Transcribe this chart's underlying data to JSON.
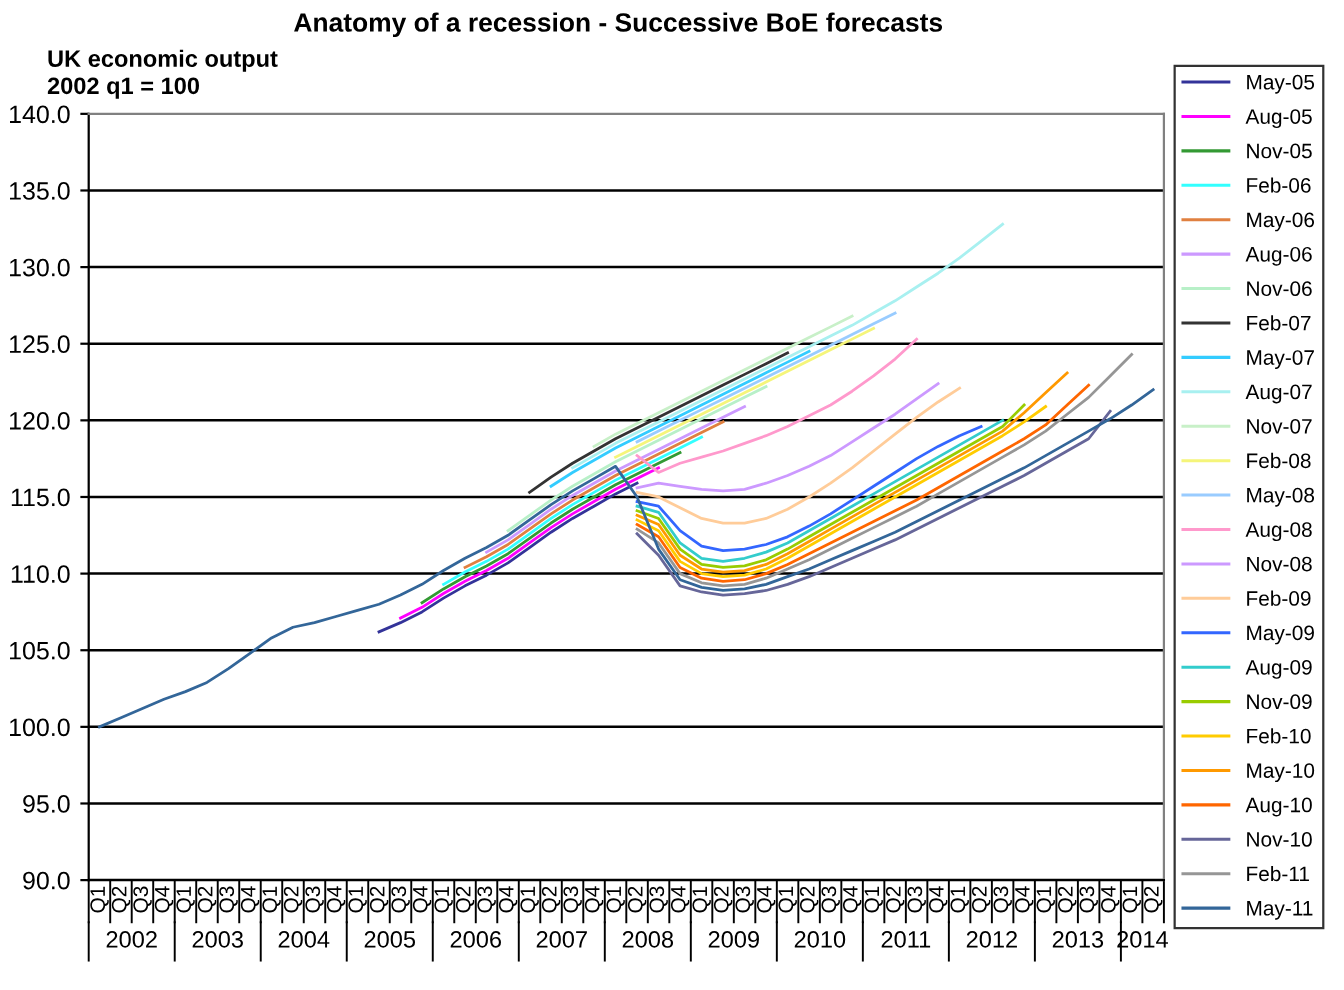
{
  "chart_data": {
    "type": "line",
    "title": "Anatomy of a recession - Successive BoE forecasts",
    "subtitle": "UK economic output\n2002 q1 = 100",
    "categories": [
      "Q1",
      "Q2",
      "Q3",
      "Q4",
      "Q1",
      "Q2",
      "Q3",
      "Q4",
      "Q1",
      "Q2",
      "Q3",
      "Q4",
      "Q1",
      "Q2",
      "Q3",
      "Q4",
      "Q1",
      "Q2",
      "Q3",
      "Q4",
      "Q1",
      "Q2",
      "Q3",
      "Q4",
      "Q1",
      "Q2",
      "Q3",
      "Q4",
      "Q1",
      "Q2",
      "Q3",
      "Q4",
      "Q1",
      "Q2",
      "Q3",
      "Q4",
      "Q1",
      "Q2",
      "Q3",
      "Q4",
      "Q1",
      "Q2",
      "Q3",
      "Q4",
      "Q1",
      "Q2",
      "Q3",
      "Q4",
      "Q1",
      "Q2"
    ],
    "annotations": [
      "2002",
      "2003",
      "2004",
      "2005",
      "2006",
      "2007",
      "2008",
      "2009",
      "2010",
      "2011",
      "2012",
      "2013",
      "2014"
    ],
    "ylim": [
      90,
      140
    ],
    "yticks": [
      {
        "value": 90,
        "label": "90.0"
      },
      {
        "value": 95,
        "label": "95.0"
      },
      {
        "value": 100,
        "label": "100.0"
      },
      {
        "value": 105,
        "label": "105.0"
      },
      {
        "value": 110,
        "label": "110.0"
      },
      {
        "value": 115,
        "label": "115.0"
      },
      {
        "value": 120,
        "label": "120.0"
      },
      {
        "value": 125,
        "label": "125.0"
      },
      {
        "value": 130,
        "label": "130.0"
      },
      {
        "value": 135,
        "label": "135.0"
      },
      {
        "value": 140,
        "label": "140.0"
      }
    ],
    "grid": "y",
    "legend": "right",
    "marker": "none",
    "line_style": "solid",
    "series": [
      {
        "name": "May-05",
        "color": "#333399",
        "values": [
          null,
          null,
          null,
          null,
          null,
          null,
          null,
          null,
          null,
          null,
          null,
          null,
          null,
          106.2,
          106.8,
          107.5,
          108.4,
          109.2,
          109.9,
          110.7,
          111.7,
          112.7,
          113.6,
          114.4,
          115.2,
          115.9,
          null,
          null,
          null,
          null,
          null,
          null,
          null,
          null,
          null,
          null,
          null,
          null,
          null,
          null,
          null,
          null,
          null,
          null,
          null,
          null,
          null,
          null,
          null,
          null
        ]
      },
      {
        "name": "Aug-05",
        "color": "#ff00ff",
        "values": [
          null,
          null,
          null,
          null,
          null,
          null,
          null,
          null,
          null,
          null,
          null,
          null,
          null,
          null,
          107.1,
          107.8,
          108.7,
          109.5,
          110.2,
          111.0,
          112.0,
          113.0,
          113.9,
          114.7,
          115.5,
          116.2,
          116.9,
          null,
          null,
          null,
          null,
          null,
          null,
          null,
          null,
          null,
          null,
          null,
          null,
          null,
          null,
          null,
          null,
          null,
          null,
          null,
          null,
          null,
          null,
          null
        ]
      },
      {
        "name": "Nov-05",
        "color": "#339933",
        "values": [
          null,
          null,
          null,
          null,
          null,
          null,
          null,
          null,
          null,
          null,
          null,
          null,
          null,
          null,
          null,
          108.1,
          109.0,
          109.8,
          110.5,
          111.3,
          112.3,
          113.3,
          114.2,
          115.0,
          115.8,
          116.5,
          117.2,
          117.9,
          null,
          null,
          null,
          null,
          null,
          null,
          null,
          null,
          null,
          null,
          null,
          null,
          null,
          null,
          null,
          null,
          null,
          null,
          null,
          null,
          null,
          null
        ]
      },
      {
        "name": "Feb-06",
        "color": "#33ffff",
        "values": [
          null,
          null,
          null,
          null,
          null,
          null,
          null,
          null,
          null,
          null,
          null,
          null,
          null,
          null,
          null,
          null,
          109.3,
          110.1,
          110.8,
          111.6,
          112.6,
          113.6,
          114.5,
          115.3,
          116.1,
          116.8,
          117.5,
          118.2,
          118.9,
          null,
          null,
          null,
          null,
          null,
          null,
          null,
          null,
          null,
          null,
          null,
          null,
          null,
          null,
          null,
          null,
          null,
          null,
          null,
          null,
          null
        ]
      },
      {
        "name": "May-06",
        "color": "#e08040",
        "values": [
          null,
          null,
          null,
          null,
          null,
          null,
          null,
          null,
          null,
          null,
          null,
          null,
          null,
          null,
          null,
          null,
          null,
          110.4,
          111.1,
          111.9,
          112.9,
          113.9,
          114.8,
          115.6,
          116.4,
          117.1,
          117.8,
          118.5,
          119.2,
          119.9,
          null,
          null,
          null,
          null,
          null,
          null,
          null,
          null,
          null,
          null,
          null,
          null,
          null,
          null,
          null,
          null,
          null,
          null,
          null,
          null
        ]
      },
      {
        "name": "Aug-06",
        "color": "#cc99ff",
        "values": [
          null,
          null,
          null,
          null,
          null,
          null,
          null,
          null,
          null,
          null,
          null,
          null,
          null,
          null,
          null,
          null,
          null,
          null,
          111.4,
          112.2,
          113.2,
          114.2,
          115.1,
          115.9,
          116.7,
          117.4,
          118.1,
          118.8,
          119.5,
          120.2,
          120.9,
          null,
          null,
          null,
          null,
          null,
          null,
          null,
          null,
          null,
          null,
          null,
          null,
          null,
          null,
          null,
          null,
          null,
          null,
          null
        ]
      },
      {
        "name": "Nov-06",
        "color": "#b8f0c8",
        "values": [
          null,
          null,
          null,
          null,
          null,
          null,
          null,
          null,
          null,
          null,
          null,
          null,
          null,
          null,
          null,
          null,
          null,
          null,
          null,
          112.8,
          113.8,
          114.8,
          115.7,
          116.5,
          117.3,
          118.0,
          118.7,
          119.4,
          120.1,
          120.8,
          121.5,
          122.2,
          null,
          null,
          null,
          null,
          null,
          null,
          null,
          null,
          null,
          null,
          null,
          null,
          null,
          null,
          null,
          null,
          null,
          null
        ]
      },
      {
        "name": "Feb-07",
        "color": "#333333",
        "values": [
          null,
          null,
          null,
          null,
          null,
          null,
          null,
          null,
          null,
          null,
          null,
          null,
          null,
          null,
          null,
          null,
          null,
          null,
          null,
          null,
          115.3,
          116.3,
          117.2,
          118.0,
          118.8,
          119.5,
          120.2,
          120.9,
          121.6,
          122.3,
          123.0,
          123.7,
          124.4,
          null,
          null,
          null,
          null,
          null,
          null,
          null,
          null,
          null,
          null,
          null,
          null,
          null,
          null,
          null,
          null,
          null
        ]
      },
      {
        "name": "May-07",
        "color": "#33ccff",
        "values": [
          null,
          null,
          null,
          null,
          null,
          null,
          null,
          null,
          null,
          null,
          null,
          null,
          null,
          null,
          null,
          null,
          null,
          null,
          null,
          null,
          null,
          115.7,
          116.6,
          117.4,
          118.2,
          118.9,
          119.6,
          120.3,
          121.0,
          121.7,
          122.4,
          123.1,
          123.8,
          124.5,
          null,
          null,
          null,
          null,
          null,
          null,
          null,
          null,
          null,
          null,
          null,
          null,
          null,
          null,
          null,
          null
        ]
      },
      {
        "name": "Aug-07",
        "color": "#a8f0f0",
        "values": [
          null,
          null,
          null,
          null,
          null,
          null,
          null,
          null,
          null,
          null,
          null,
          null,
          null,
          null,
          null,
          null,
          null,
          null,
          null,
          null,
          null,
          null,
          116.9,
          117.7,
          118.5,
          119.2,
          119.9,
          120.6,
          121.3,
          122.0,
          122.7,
          123.4,
          124.1,
          124.8,
          125.5,
          126.2,
          127.0,
          127.8,
          128.7,
          129.6,
          130.6,
          131.7,
          132.8,
          null,
          null,
          null,
          null,
          null,
          null,
          null
        ]
      },
      {
        "name": "Nov-07",
        "color": "#c8f0c8",
        "values": [
          null,
          null,
          null,
          null,
          null,
          null,
          null,
          null,
          null,
          null,
          null,
          null,
          null,
          null,
          null,
          null,
          null,
          null,
          null,
          null,
          null,
          null,
          null,
          118.3,
          119.1,
          119.8,
          120.5,
          121.2,
          121.9,
          122.6,
          123.3,
          124.0,
          124.7,
          125.4,
          126.1,
          126.8,
          null,
          null,
          null,
          null,
          null,
          null,
          null,
          null,
          null,
          null,
          null,
          null,
          null,
          null
        ]
      },
      {
        "name": "Feb-08",
        "color": "#f5f57a",
        "values": [
          null,
          null,
          null,
          null,
          null,
          null,
          null,
          null,
          null,
          null,
          null,
          null,
          null,
          null,
          null,
          null,
          null,
          null,
          null,
          null,
          null,
          null,
          null,
          null,
          117.6,
          118.3,
          119.0,
          119.7,
          120.4,
          121.1,
          121.8,
          122.5,
          123.2,
          123.9,
          124.6,
          125.3,
          126.0,
          null,
          null,
          null,
          null,
          null,
          null,
          null,
          null,
          null,
          null,
          null,
          null,
          null
        ]
      },
      {
        "name": "May-08",
        "color": "#99ccff",
        "values": [
          null,
          null,
          null,
          null,
          null,
          null,
          null,
          null,
          null,
          null,
          null,
          null,
          null,
          null,
          null,
          null,
          null,
          null,
          null,
          null,
          null,
          null,
          null,
          null,
          null,
          118.6,
          119.3,
          120.0,
          120.7,
          121.4,
          122.1,
          122.8,
          123.5,
          124.2,
          124.9,
          125.6,
          126.3,
          127.0,
          null,
          null,
          null,
          null,
          null,
          null,
          null,
          null,
          null,
          null,
          null,
          null
        ]
      },
      {
        "name": "Aug-08",
        "color": "#ff99cc",
        "values": [
          null,
          null,
          null,
          null,
          null,
          null,
          null,
          null,
          null,
          null,
          null,
          null,
          null,
          null,
          null,
          null,
          null,
          null,
          null,
          null,
          null,
          null,
          null,
          null,
          null,
          117.7,
          116.6,
          117.2,
          117.6,
          118.0,
          118.5,
          119.0,
          119.6,
          120.3,
          121.0,
          121.9,
          122.9,
          124.0,
          125.3,
          null,
          null,
          null,
          null,
          null,
          null,
          null,
          null,
          null,
          null,
          null
        ]
      },
      {
        "name": "Nov-08",
        "color": "#cc99ff",
        "values": [
          null,
          null,
          null,
          null,
          null,
          null,
          null,
          null,
          null,
          null,
          null,
          null,
          null,
          null,
          null,
          null,
          null,
          null,
          null,
          null,
          null,
          null,
          null,
          null,
          null,
          115.6,
          115.9,
          115.7,
          115.5,
          115.4,
          115.5,
          115.9,
          116.4,
          117.0,
          117.7,
          118.6,
          119.5,
          120.4,
          121.4,
          122.4,
          null,
          null,
          null,
          null,
          null,
          null,
          null,
          null,
          null,
          null
        ]
      },
      {
        "name": "Feb-09",
        "color": "#ffcc99",
        "values": [
          null,
          null,
          null,
          null,
          null,
          null,
          null,
          null,
          null,
          null,
          null,
          null,
          null,
          null,
          null,
          null,
          null,
          null,
          null,
          null,
          null,
          null,
          null,
          null,
          null,
          115.3,
          115.0,
          114.3,
          113.6,
          113.3,
          113.3,
          113.6,
          114.2,
          115.0,
          115.9,
          116.9,
          118.0,
          119.1,
          120.2,
          121.2,
          122.1,
          null,
          null,
          null,
          null,
          null,
          null,
          null,
          null,
          null
        ]
      },
      {
        "name": "May-09",
        "color": "#3366ff",
        "values": [
          null,
          null,
          null,
          null,
          null,
          null,
          null,
          null,
          null,
          null,
          null,
          null,
          null,
          null,
          null,
          null,
          null,
          null,
          null,
          null,
          null,
          null,
          null,
          null,
          null,
          114.7,
          114.4,
          112.8,
          111.8,
          111.5,
          111.6,
          111.9,
          112.4,
          113.1,
          113.9,
          114.8,
          115.7,
          116.6,
          117.5,
          118.3,
          119.0,
          119.6,
          null,
          null,
          null,
          null,
          null,
          null,
          null,
          null
        ]
      },
      {
        "name": "Aug-09",
        "color": "#33cccc",
        "values": [
          null,
          null,
          null,
          null,
          null,
          null,
          null,
          null,
          null,
          null,
          null,
          null,
          null,
          null,
          null,
          null,
          null,
          null,
          null,
          null,
          null,
          null,
          null,
          null,
          null,
          114.4,
          114.0,
          112.0,
          111.0,
          110.8,
          111.0,
          111.4,
          112.0,
          112.8,
          113.6,
          114.4,
          115.2,
          116.0,
          116.8,
          117.6,
          118.4,
          119.2,
          120.0,
          null,
          null,
          null,
          null,
          null,
          null,
          null
        ]
      },
      {
        "name": "Nov-09",
        "color": "#99cc00",
        "values": [
          null,
          null,
          null,
          null,
          null,
          null,
          null,
          null,
          null,
          null,
          null,
          null,
          null,
          null,
          null,
          null,
          null,
          null,
          null,
          null,
          null,
          null,
          null,
          null,
          null,
          114.1,
          113.6,
          111.6,
          110.6,
          110.4,
          110.5,
          110.9,
          111.6,
          112.4,
          113.2,
          114.0,
          114.8,
          115.6,
          116.4,
          117.2,
          118.0,
          118.8,
          119.6,
          121.0,
          null,
          null,
          null,
          null,
          null,
          null
        ]
      },
      {
        "name": "Feb-10",
        "color": "#ffcc00",
        "values": [
          null,
          null,
          null,
          null,
          null,
          null,
          null,
          null,
          null,
          null,
          null,
          null,
          null,
          null,
          null,
          null,
          null,
          null,
          null,
          null,
          null,
          null,
          null,
          null,
          null,
          113.5,
          112.8,
          110.8,
          110.0,
          109.8,
          109.9,
          110.3,
          111.0,
          111.8,
          112.6,
          113.4,
          114.2,
          115.0,
          115.8,
          116.6,
          117.4,
          118.2,
          119.0,
          119.9,
          120.9,
          null,
          null,
          null,
          null,
          null
        ]
      },
      {
        "name": "May-10",
        "color": "#ff9900",
        "values": [
          null,
          null,
          null,
          null,
          null,
          null,
          null,
          null,
          null,
          null,
          null,
          null,
          null,
          null,
          null,
          null,
          null,
          null,
          null,
          null,
          null,
          null,
          null,
          null,
          null,
          113.8,
          113.2,
          111.2,
          110.3,
          110.1,
          110.2,
          110.6,
          111.3,
          112.1,
          112.9,
          113.7,
          114.5,
          115.3,
          116.1,
          116.9,
          117.7,
          118.5,
          119.3,
          120.5,
          121.8,
          123.1,
          null,
          null,
          null,
          null
        ]
      },
      {
        "name": "Aug-10",
        "color": "#ff6600",
        "values": [
          null,
          null,
          null,
          null,
          null,
          null,
          null,
          null,
          null,
          null,
          null,
          null,
          null,
          null,
          null,
          null,
          null,
          null,
          null,
          null,
          null,
          null,
          null,
          null,
          null,
          113.2,
          112.4,
          110.4,
          109.7,
          109.5,
          109.6,
          110.0,
          110.6,
          111.3,
          112.0,
          112.7,
          113.4,
          114.1,
          114.8,
          115.6,
          116.4,
          117.2,
          118.0,
          118.8,
          119.7,
          121.0,
          122.3,
          null,
          null,
          null
        ]
      },
      {
        "name": "Nov-10",
        "color": "#666699",
        "values": [
          null,
          null,
          null,
          null,
          null,
          null,
          null,
          null,
          null,
          null,
          null,
          null,
          null,
          null,
          null,
          null,
          null,
          null,
          null,
          null,
          null,
          null,
          null,
          null,
          null,
          112.6,
          111.2,
          109.2,
          108.8,
          108.6,
          108.7,
          108.9,
          109.3,
          109.8,
          110.4,
          111.0,
          111.6,
          112.2,
          112.9,
          113.6,
          114.3,
          115.0,
          115.7,
          116.4,
          117.2,
          118.0,
          118.8,
          120.6,
          null,
          null
        ]
      },
      {
        "name": "Feb-11",
        "color": "#969696",
        "values": [
          null,
          null,
          null,
          null,
          null,
          null,
          null,
          null,
          null,
          null,
          null,
          null,
          null,
          null,
          null,
          null,
          null,
          null,
          null,
          null,
          null,
          null,
          null,
          null,
          null,
          112.9,
          112.0,
          110.0,
          109.4,
          109.2,
          109.3,
          109.7,
          110.3,
          110.9,
          111.6,
          112.3,
          113.0,
          113.7,
          114.4,
          115.2,
          116.0,
          116.8,
          117.6,
          118.4,
          119.3,
          120.4,
          121.5,
          122.9,
          124.3,
          null
        ]
      },
      {
        "name": "May-11",
        "color": "#336699",
        "values": [
          100.0,
          100.6,
          101.2,
          101.8,
          102.3,
          102.9,
          103.8,
          104.8,
          105.8,
          106.5,
          106.8,
          107.2,
          107.6,
          108.0,
          108.6,
          109.3,
          110.2,
          111.0,
          111.7,
          112.5,
          113.5,
          114.5,
          115.4,
          116.2,
          117.0,
          115.0,
          111.6,
          109.6,
          109.1,
          108.9,
          109.0,
          109.3,
          109.8,
          110.3,
          110.9,
          111.5,
          112.1,
          112.7,
          113.4,
          114.1,
          114.8,
          115.5,
          116.2,
          116.9,
          117.7,
          118.5,
          119.3,
          120.1,
          121.0,
          122.0
        ]
      }
    ]
  }
}
